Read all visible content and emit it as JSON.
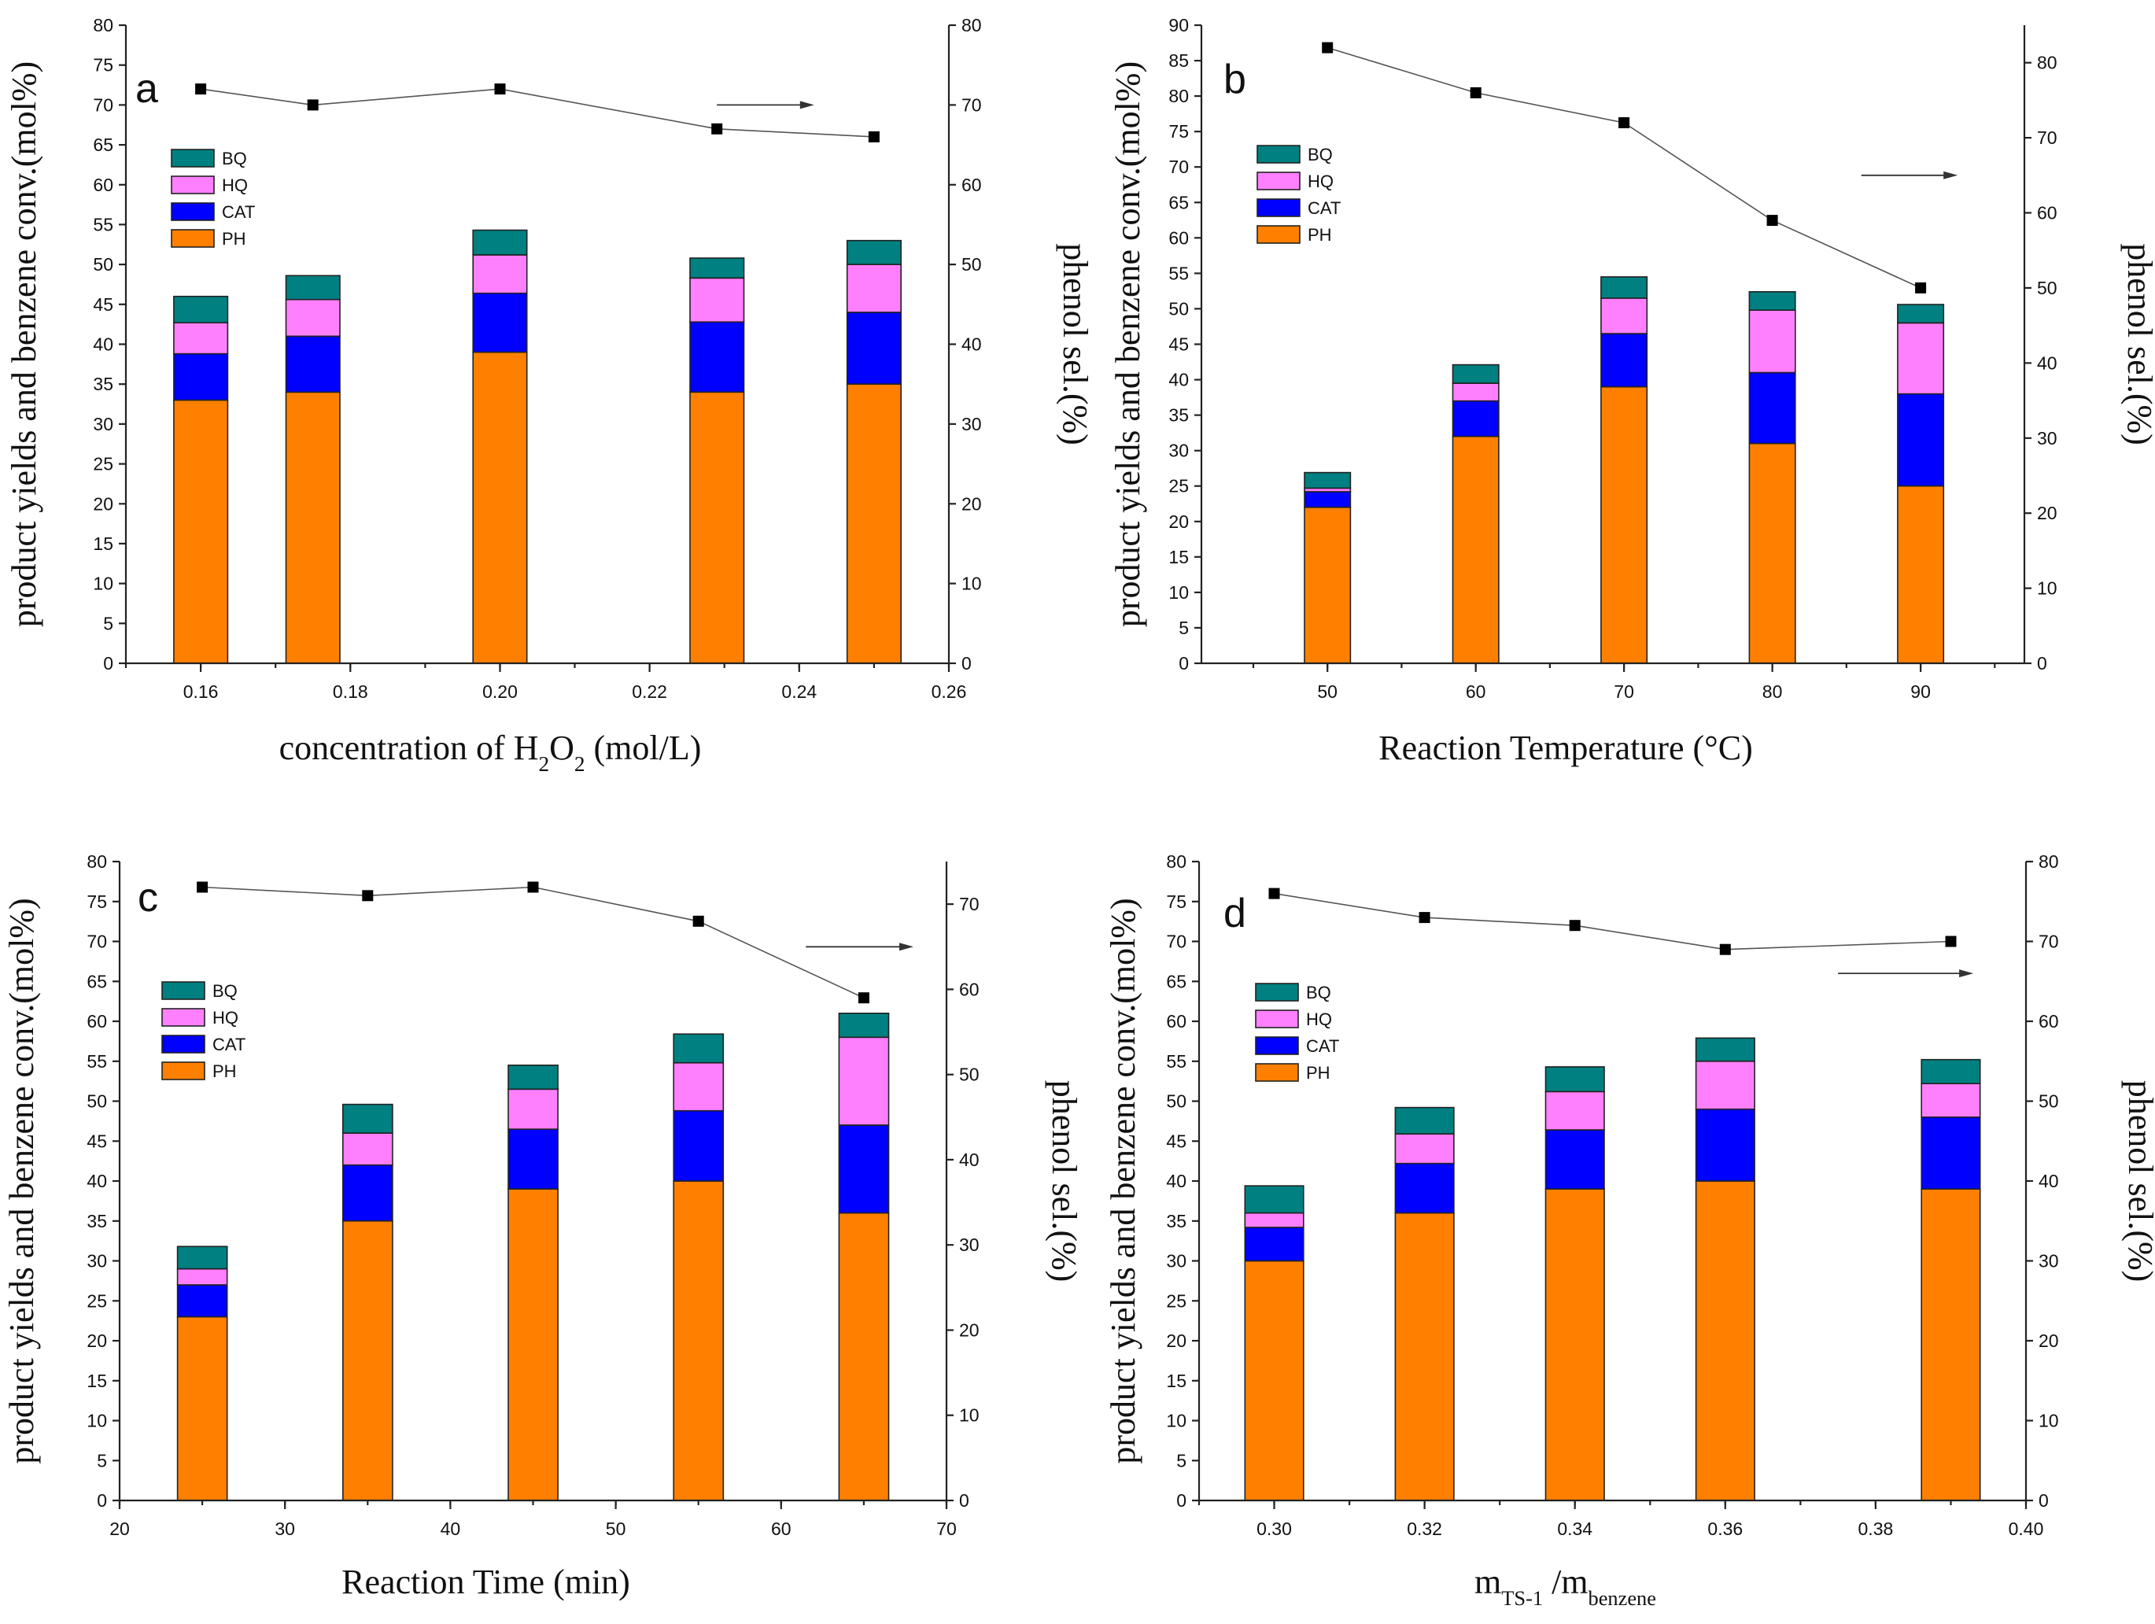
{
  "chart_data": [
    {
      "type": "bar",
      "stacked": true,
      "panel_label": "a",
      "x_label_html": "concentration of H<tspan baseline-shift=\"sub\" font-size=\"0.62em\">2</tspan>O<tspan baseline-shift=\"sub\" font-size=\"0.62em\">2</tspan> (mol/L)",
      "xlabel": "concentration of H2O2 (mol/L)",
      "ylabel": "product yields and benzene conv.(mol%)",
      "y2label": "phenol sel.(%)",
      "xlim": [
        0.15,
        0.26
      ],
      "xticks": [
        0.16,
        0.18,
        0.2,
        0.22,
        0.24,
        0.26
      ],
      "xtick_labels": [
        "0.16",
        "0.18",
        "0.20",
        "0.22",
        "0.24",
        "0.26"
      ],
      "bar_half_width": 0.0036,
      "ylim": [
        0,
        80
      ],
      "y_tick_step": 5,
      "y2lim": [
        0,
        80
      ],
      "y2_tick_step": 10,
      "x": [
        0.16,
        0.175,
        0.2,
        0.229,
        0.25
      ],
      "series": [
        {
          "name": "PH",
          "values": [
            33,
            34,
            39,
            34,
            35
          ]
        },
        {
          "name": "CAT",
          "values": [
            5.8,
            7,
            7.4,
            8.8,
            9
          ]
        },
        {
          "name": "HQ",
          "values": [
            3.9,
            4.6,
            4.8,
            5.5,
            6
          ]
        },
        {
          "name": "BQ",
          "values": [
            3.3,
            3,
            3.1,
            2.5,
            3
          ]
        }
      ],
      "selectivity": {
        "name": "phenol sel.",
        "values": [
          72,
          70,
          72,
          67,
          66
        ]
      },
      "arrow": {
        "x_start": 0.229,
        "x_end": 0.242,
        "y2": 70
      }
    },
    {
      "type": "bar",
      "stacked": true,
      "panel_label": "b",
      "x_label_html": "Reaction Temperature (°C)",
      "xlabel": "Reaction Temperature (°C)",
      "ylabel": "product yields and benzene conv.(mol%)",
      "y2label": "phenol sel.(%)",
      "xlim": [
        41.5,
        97
      ],
      "xticks": [
        50,
        60,
        70,
        80,
        90
      ],
      "xtick_labels": [
        "50",
        "60",
        "70",
        "80",
        "90"
      ],
      "bar_half_width": 1.55,
      "ylim": [
        0,
        90
      ],
      "y_tick_step": 5,
      "y2lim": [
        0,
        85
      ],
      "y2_tick_step": 10,
      "x": [
        50,
        60,
        70,
        80,
        90
      ],
      "series": [
        {
          "name": "PH",
          "values": [
            22,
            32,
            39,
            31,
            25
          ]
        },
        {
          "name": "CAT",
          "values": [
            2.2,
            5,
            7.5,
            10,
            13
          ]
        },
        {
          "name": "HQ",
          "values": [
            0.5,
            2.5,
            5,
            8.8,
            10
          ]
        },
        {
          "name": "BQ",
          "values": [
            2.2,
            2.6,
            3,
            2.6,
            2.6
          ]
        }
      ],
      "selectivity": {
        "name": "phenol sel.",
        "values": [
          82,
          76,
          72,
          59,
          50
        ]
      },
      "arrow": {
        "x_start": 86,
        "x_end": 92.5,
        "y2": 65
      }
    },
    {
      "type": "bar",
      "stacked": true,
      "panel_label": "c",
      "x_label_html": "Reaction Time (min)",
      "xlabel": "Reaction Time (min)",
      "ylabel": "product yields and benzene conv.(mol%)",
      "y2label": "phenol sel.(%)",
      "xlim": [
        20,
        70
      ],
      "xticks": [
        20,
        30,
        40,
        50,
        60,
        70
      ],
      "xtick_labels": [
        "20",
        "30",
        "40",
        "50",
        "60",
        "70"
      ],
      "bar_half_width": 1.5,
      "ylim": [
        0,
        80
      ],
      "y_tick_step": 5,
      "y2lim": [
        0,
        75
      ],
      "y2_tick_step": 10,
      "x": [
        25,
        35,
        45,
        55,
        65
      ],
      "series": [
        {
          "name": "PH",
          "values": [
            23,
            35,
            39,
            40,
            36
          ]
        },
        {
          "name": "CAT",
          "values": [
            4,
            7,
            7.5,
            8.8,
            11
          ]
        },
        {
          "name": "HQ",
          "values": [
            2,
            4,
            5,
            6,
            11
          ]
        },
        {
          "name": "BQ",
          "values": [
            2.8,
            3.6,
            3,
            3.6,
            3
          ]
        }
      ],
      "selectivity": {
        "name": "phenol sel.",
        "values": [
          72,
          71,
          72,
          68,
          59
        ]
      },
      "arrow": {
        "x_start": 61.5,
        "x_end": 68,
        "y2": 65
      }
    },
    {
      "type": "bar",
      "stacked": true,
      "panel_label": "d",
      "x_label_html": "m<tspan baseline-shift=\"sub\" font-size=\"0.6em\">TS-1</tspan> /m<tspan baseline-shift=\"sub\" font-size=\"0.6em\">benzene</tspan>",
      "xlabel": "mTS-1 /mbenzene",
      "ylabel": "product yields and benzene conv.(mol%)",
      "y2label": "phenol sel.(%)",
      "xlim": [
        0.29,
        0.4
      ],
      "xticks": [
        0.3,
        0.32,
        0.34,
        0.36,
        0.38,
        0.4
      ],
      "xtick_labels": [
        "0.30",
        "0.32",
        "0.34",
        "0.36",
        "0.38",
        "0.40"
      ],
      "bar_half_width": 0.0039,
      "ylim": [
        0,
        80
      ],
      "y_tick_step": 5,
      "y2lim": [
        0,
        80
      ],
      "y2_tick_step": 10,
      "x": [
        0.3,
        0.32,
        0.34,
        0.36,
        0.39
      ],
      "series": [
        {
          "name": "PH",
          "values": [
            30,
            36,
            39,
            40,
            39
          ]
        },
        {
          "name": "CAT",
          "values": [
            4.2,
            6.2,
            7.4,
            9,
            9
          ]
        },
        {
          "name": "HQ",
          "values": [
            1.8,
            3.7,
            4.8,
            6,
            4.2
          ]
        },
        {
          "name": "BQ",
          "values": [
            3.4,
            3.3,
            3.1,
            2.9,
            3
          ]
        }
      ],
      "selectivity": {
        "name": "phenol sel.",
        "values": [
          76,
          73,
          72,
          69,
          70
        ]
      },
      "arrow": {
        "x_start": 0.375,
        "x_end": 0.393,
        "y2": 66
      }
    }
  ],
  "legend": {
    "order": [
      "BQ",
      "HQ",
      "CAT",
      "PH"
    ],
    "colors": {
      "PH": "#FF8000",
      "CAT": "#0000FF",
      "HQ": "#FF80FF",
      "BQ": "#008080"
    }
  },
  "line_color": "#555555",
  "marker_color": "#000000"
}
